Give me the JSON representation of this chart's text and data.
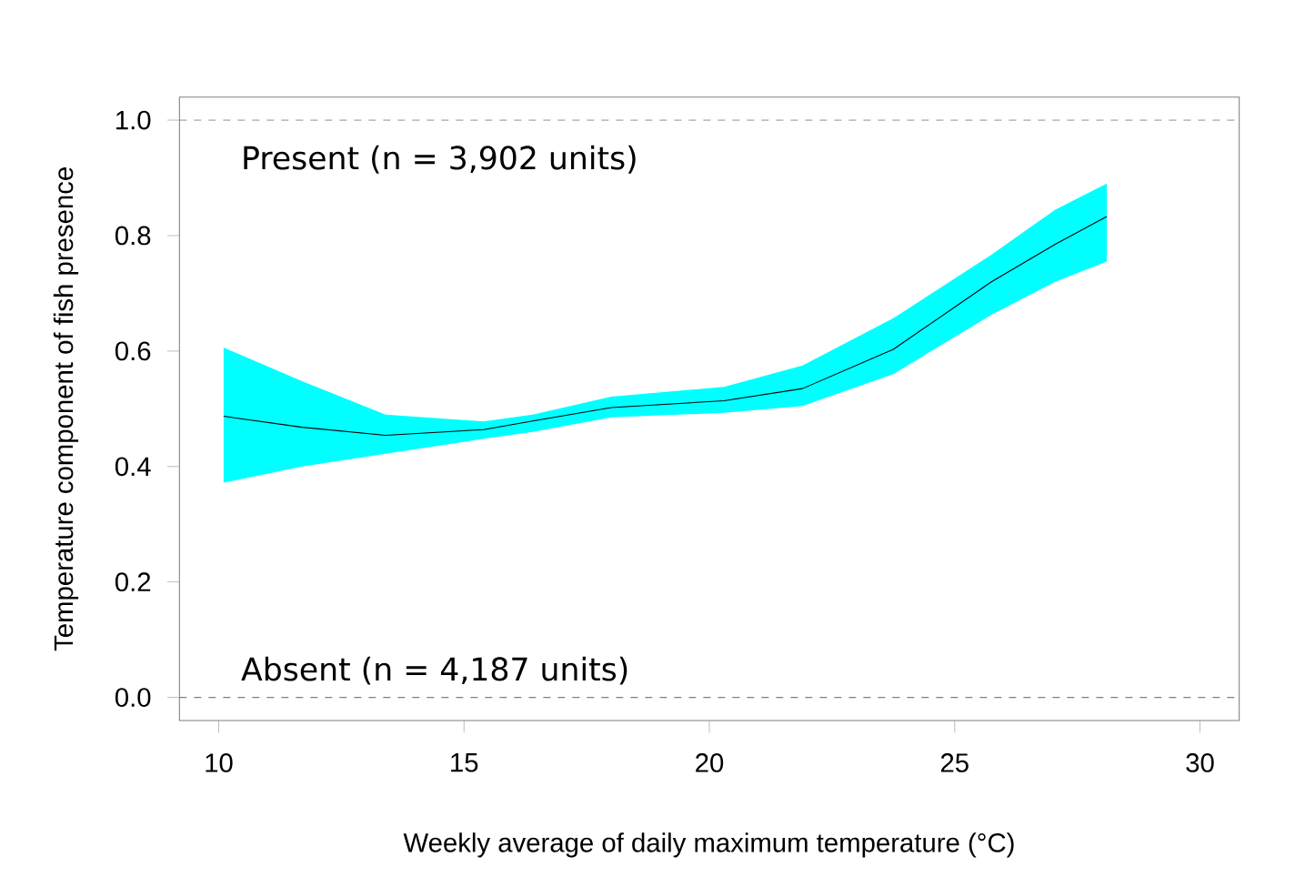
{
  "chart_data": {
    "type": "line",
    "xlabel": "Weekly average of daily maximum temperature (°C)",
    "ylabel": "Temperature component of fish presence",
    "annotations": [
      "Present (n = 3,902 units)",
      "Absent (n = 4,187 units)"
    ],
    "x": [
      10.1,
      11.7,
      13.4,
      15.4,
      16.4,
      18.0,
      20.3,
      21.9,
      23.75,
      25.75,
      27.05,
      28.1
    ],
    "series": [
      {
        "color": "#000000",
        "values": [
          0.487,
          0.468,
          0.454,
          0.464,
          0.479,
          0.502,
          0.514,
          0.535,
          0.603,
          0.72,
          0.785,
          0.833
        ],
        "lower": [
          0.372,
          0.4,
          0.422,
          0.448,
          0.46,
          0.485,
          0.493,
          0.505,
          0.56,
          0.663,
          0.72,
          0.755
        ],
        "upper": [
          0.606,
          0.548,
          0.49,
          0.478,
          0.49,
          0.521,
          0.538,
          0.575,
          0.657,
          0.767,
          0.845,
          0.89
        ]
      }
    ],
    "xlim": [
      9.2,
      30.8
    ],
    "ylim": [
      -0.04,
      1.04
    ],
    "xticks": [
      10,
      15,
      20,
      25,
      30
    ],
    "yticks": [
      {
        "value": 0,
        "label": "0.0"
      },
      {
        "value": 0.2,
        "label": "0.2"
      },
      {
        "value": 0.4,
        "label": "0.4"
      },
      {
        "value": 0.6,
        "label": "0.6"
      },
      {
        "value": 0.8,
        "label": "0.8"
      },
      {
        "value": 1,
        "label": "1.0"
      }
    ],
    "ref_lines": [
      {
        "axis": "y",
        "value": 0,
        "color": "#808080",
        "line_style": "dashed"
      },
      {
        "axis": "y",
        "value": 1,
        "color": "#808080",
        "line_style": "dashed"
      }
    ],
    "grid": false,
    "marker": "none",
    "line_style": "solid"
  }
}
